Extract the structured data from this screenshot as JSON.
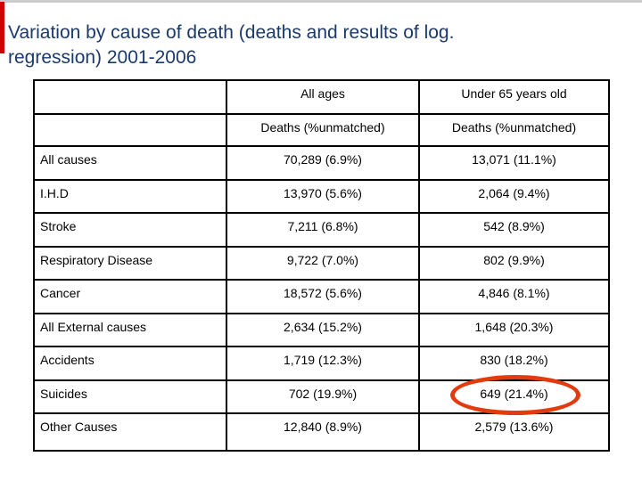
{
  "title": {
    "line1": "Variation by cause of death (deaths and results of log.",
    "line2": "regression) 2001-2006"
  },
  "table": {
    "corner_cell": "",
    "column_groups": [
      "All ages",
      "Under 65 years old"
    ],
    "sub_headers": [
      "Deaths (%unmatched)",
      "Deaths (%unmatched)"
    ],
    "rows": [
      {
        "label": "All causes",
        "all_ages": "70,289 (6.9%)",
        "under_65": "13,071 (11.1%)"
      },
      {
        "label": "I.H.D",
        "all_ages": "13,970 (5.6%)",
        "under_65": "2,064 (9.4%)"
      },
      {
        "label": "Stroke",
        "all_ages": "7,211 (6.8%)",
        "under_65": "542 (8.9%)"
      },
      {
        "label": "Respiratory Disease",
        "all_ages": "9,722 (7.0%)",
        "under_65": "802 (9.9%)"
      },
      {
        "label": "Cancer",
        "all_ages": "18,572 (5.6%)",
        "under_65": "4,846 (8.1%)"
      },
      {
        "label": "All External causes",
        "all_ages": "2,634 (15.2%)",
        "under_65": "1,648 (20.3%)"
      },
      {
        "label": "Accidents",
        "all_ages": "1,719 (12.3%)",
        "under_65": "830 (18.2%)"
      },
      {
        "label": "Suicides",
        "all_ages": "702 (19.9%)",
        "under_65": "649 (21.4%)"
      },
      {
        "label": "Other Causes",
        "all_ages": "12,840 (8.9%)",
        "under_65": "2,579 (13.6%)"
      }
    ],
    "highlight": {
      "row_label": "Suicides",
      "column": "Under 65 years old",
      "value": "649 (21.4%)"
    }
  },
  "colors": {
    "title_text": "#1b3a6b",
    "accent_bar_red": "#cc0000",
    "label_cell_yellow": "#ffffb3",
    "highlight_ellipse_red": "#e23b0e",
    "table_border": "#000000",
    "top_edge_gray": "#cbcbcb"
  }
}
